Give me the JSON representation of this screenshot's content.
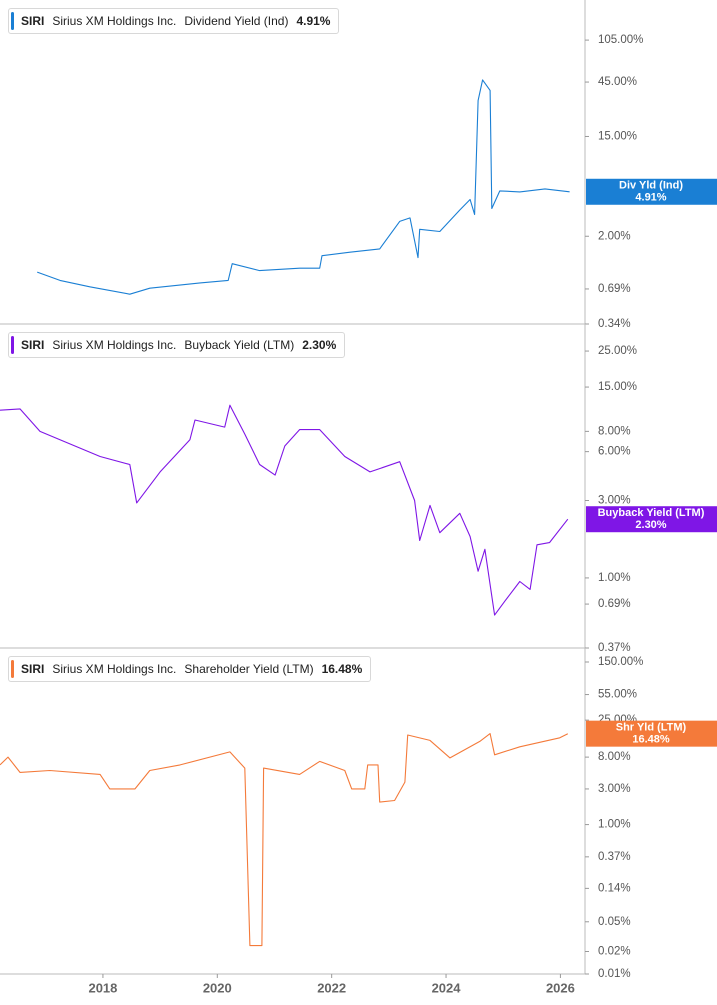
{
  "chart_data": [
    {
      "type": "line",
      "ticker": "SIRI",
      "company": "Sirius XM Holdings Inc.",
      "log_scale": true,
      "grid": false,
      "xlim": [
        2016.2,
        2026.43
      ],
      "ylim": [
        0.34,
        236
      ],
      "yticks": [
        {
          "value": 105,
          "label": "105.00%"
        },
        {
          "value": 45,
          "label": "45.00%"
        },
        {
          "value": 15,
          "label": "15.00%"
        },
        {
          "value": 2,
          "label": "2.00%"
        },
        {
          "value": 0.69,
          "label": "0.69%"
        },
        {
          "value": 0.34,
          "label": "0.34%"
        }
      ],
      "x": [
        2016.85,
        2017.25,
        2017.77,
        2018.47,
        2018.82,
        2019.7,
        2020.19,
        2020.26,
        2020.74,
        2021.44,
        2021.79,
        2021.83,
        2022.32,
        2022.84,
        2023.19,
        2023.37,
        2023.51,
        2023.54,
        2023.89,
        2024.24,
        2024.42,
        2024.5,
        2024.56,
        2024.64,
        2024.77,
        2024.8,
        2024.94,
        2025.29,
        2025.73,
        2026.16
      ],
      "series": [
        {
          "name": "Dividend Yield (Ind)",
          "short_name": "Div Yld (Ind)",
          "color": "#1a7fd4",
          "values": [
            0.97,
            0.82,
            0.72,
            0.62,
            0.7,
            0.78,
            0.82,
            1.15,
            1.0,
            1.05,
            1.05,
            1.35,
            1.45,
            1.55,
            2.7,
            2.9,
            1.3,
            2.3,
            2.2,
            3.4,
            4.2,
            3.1,
            31,
            47,
            38,
            3.5,
            5.0,
            4.9,
            5.2,
            4.91
          ],
          "latest": {
            "value": 4.91,
            "label": "4.91%"
          }
        }
      ]
    },
    {
      "type": "line",
      "ticker": "SIRI",
      "company": "Sirius XM Holdings Inc.",
      "log_scale": true,
      "grid": false,
      "xlim": [
        2016.2,
        2026.43
      ],
      "ylim": [
        0.37,
        36.7
      ],
      "yticks": [
        {
          "value": 25,
          "label": "25.00%"
        },
        {
          "value": 15,
          "label": "15.00%"
        },
        {
          "value": 8,
          "label": "8.00%"
        },
        {
          "value": 6,
          "label": "6.00%"
        },
        {
          "value": 3,
          "label": "3.00%"
        },
        {
          "value": 1,
          "label": "1.00%"
        },
        {
          "value": 0.69,
          "label": "0.69%"
        },
        {
          "value": 0.37,
          "label": "0.37%"
        }
      ],
      "x": [
        2016.2,
        2016.55,
        2016.9,
        2017.25,
        2017.95,
        2018.47,
        2018.59,
        2019.0,
        2019.52,
        2019.61,
        2020.13,
        2020.22,
        2020.48,
        2020.74,
        2021.01,
        2021.18,
        2021.44,
        2021.79,
        2022.23,
        2022.67,
        2023.19,
        2023.45,
        2023.54,
        2023.72,
        2023.89,
        2024.24,
        2024.42,
        2024.56,
        2024.68,
        2024.85,
        2025.03,
        2025.29,
        2025.47,
        2025.59,
        2025.81,
        2026.13
      ],
      "series": [
        {
          "name": "Buyback Yield (LTM)",
          "short_name": "Buyback Yield (LTM)",
          "color": "#7f16e6",
          "values": [
            10.8,
            11,
            8,
            7.1,
            5.6,
            5.0,
            2.9,
            4.5,
            7.1,
            9.4,
            8.5,
            11.6,
            7.7,
            5.0,
            4.3,
            6.5,
            8.2,
            8.2,
            5.6,
            4.5,
            5.2,
            3.0,
            1.7,
            2.8,
            1.9,
            2.5,
            1.8,
            1.1,
            1.5,
            0.59,
            0.72,
            0.95,
            0.85,
            1.6,
            1.65,
            2.3
          ],
          "latest": {
            "value": 2.3,
            "label": "2.30%"
          }
        }
      ]
    },
    {
      "type": "line",
      "ticker": "SIRI",
      "company": "Sirius XM Holdings Inc.",
      "log_scale": true,
      "grid": false,
      "xlim": [
        2016.2,
        2026.43
      ],
      "ylim": [
        0.01,
        231
      ],
      "xticks": [
        2018,
        2020,
        2022,
        2024,
        2026
      ],
      "yticks": [
        {
          "value": 150,
          "label": "150.00%"
        },
        {
          "value": 55,
          "label": "55.00%"
        },
        {
          "value": 25,
          "label": "25.00%"
        },
        {
          "value": 8,
          "label": "8.00%"
        },
        {
          "value": 3,
          "label": "3.00%"
        },
        {
          "value": 1,
          "label": "1.00%"
        },
        {
          "value": 0.37,
          "label": "0.37%"
        },
        {
          "value": 0.14,
          "label": "0.14%"
        },
        {
          "value": 0.05,
          "label": "0.05%"
        },
        {
          "value": 0.02,
          "label": "0.02%"
        },
        {
          "value": 0.01,
          "label": "0.01%"
        }
      ],
      "x": [
        2016.2,
        2016.34,
        2016.55,
        2017.07,
        2017.95,
        2018.12,
        2018.56,
        2018.82,
        2019.35,
        2020.22,
        2020.48,
        2020.57,
        2020.78,
        2020.81,
        2021.44,
        2021.79,
        2022.23,
        2022.35,
        2022.58,
        2022.63,
        2022.81,
        2022.84,
        2023.1,
        2023.28,
        2023.33,
        2023.72,
        2024.07,
        2024.59,
        2024.77,
        2024.85,
        2025.29,
        2025.99,
        2026.13
      ],
      "series": [
        {
          "name": "Shareholder Yield (LTM)",
          "short_name": "Shr Yld (LTM)",
          "color": "#f47a3a",
          "values": [
            6.3,
            8,
            5.0,
            5.3,
            4.7,
            3.0,
            3.0,
            5.3,
            6.3,
            9.4,
            5.7,
            0.024,
            0.024,
            5.7,
            4.7,
            7,
            5.3,
            3.0,
            3.0,
            6.3,
            6.3,
            2.0,
            2.1,
            3.7,
            15.8,
            13.4,
            7.8,
            13,
            16.5,
            8.6,
            11,
            14.5,
            16.48
          ],
          "latest": {
            "value": 16.48,
            "label": "16.48%"
          }
        }
      ]
    }
  ]
}
